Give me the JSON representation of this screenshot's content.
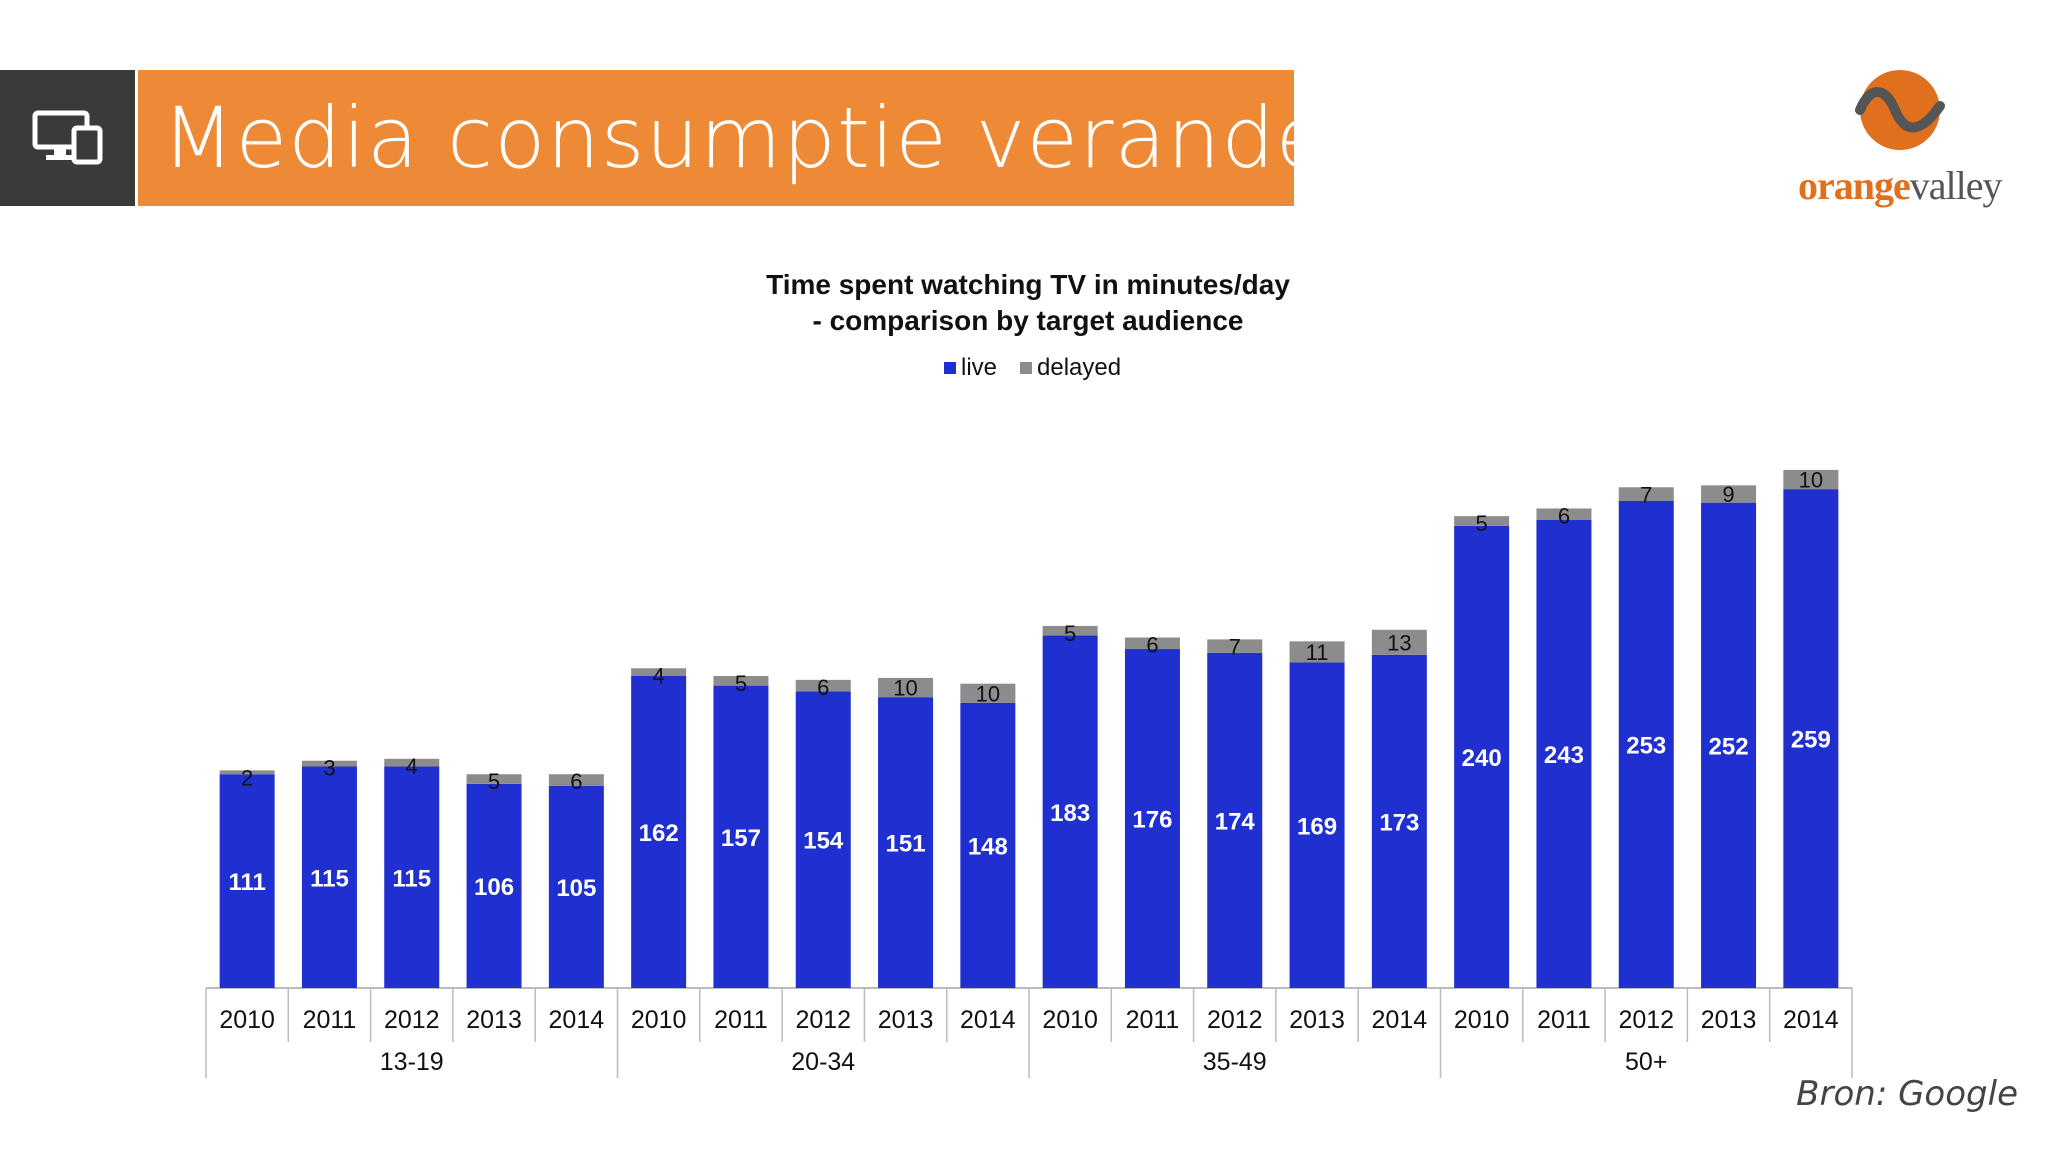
{
  "header": {
    "title": "Media consumptie verandert",
    "icon": "devices-icon",
    "accent": "#ee8a35",
    "icon_bg": "#3a3a3a"
  },
  "logo": {
    "part1": "orange",
    "part2": "valley"
  },
  "source": "Bron: Google",
  "chart_data": {
    "type": "bar",
    "stacked": true,
    "title": "Time spent watching TV in minutes/day",
    "subtitle": "- comparison by target audience",
    "legend_position": "top-center",
    "categories": [
      "2010",
      "2011",
      "2012",
      "2013",
      "2014",
      "2010",
      "2011",
      "2012",
      "2013",
      "2014",
      "2010",
      "2011",
      "2012",
      "2013",
      "2014",
      "2010",
      "2011",
      "2012",
      "2013",
      "2014"
    ],
    "groups": [
      {
        "label": "13-19",
        "count": 5
      },
      {
        "label": "20-34",
        "count": 5
      },
      {
        "label": "35-49",
        "count": 5
      },
      {
        "label": "50+",
        "count": 5
      }
    ],
    "series": [
      {
        "name": "live",
        "color": "#1f2fd0",
        "values": [
          111,
          115,
          115,
          106,
          105,
          162,
          157,
          154,
          151,
          148,
          183,
          176,
          174,
          169,
          173,
          240,
          243,
          253,
          252,
          259
        ]
      },
      {
        "name": "delayed",
        "color": "#8c8c8c",
        "values": [
          2,
          3,
          4,
          5,
          6,
          4,
          5,
          6,
          10,
          10,
          5,
          6,
          7,
          11,
          13,
          5,
          6,
          7,
          9,
          10
        ]
      }
    ],
    "ylim": [
      0,
      270
    ],
    "grid": false
  }
}
